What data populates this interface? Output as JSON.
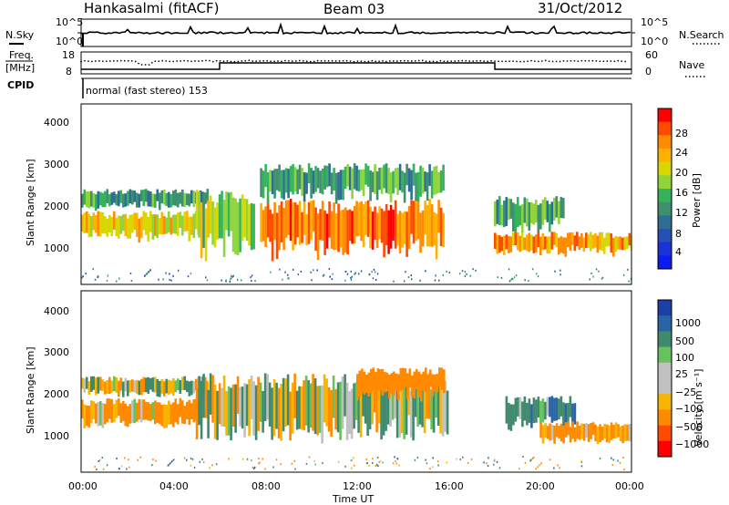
{
  "header": {
    "station": "Hankasalmi (fitACF)",
    "beam": "Beam 03",
    "date": "31/Oct/2012"
  },
  "noise_panel": {
    "left_label": "N.Sky",
    "right_label": "N.Search",
    "left_ticks": [
      "10^5",
      "10^0"
    ],
    "right_ticks": [
      "10^5",
      "10^0"
    ]
  },
  "freq_panel": {
    "left_label_1": "Freq.",
    "left_label_2": "[MHz]",
    "right_label": "Nave",
    "left_ticks": [
      "18",
      "8"
    ],
    "right_ticks": [
      "60",
      "0"
    ]
  },
  "cpid": {
    "label": "CPID",
    "text": "normal (fast stereo) 153"
  },
  "power_panel": {
    "ylabel": "Slant Range [km]",
    "yticks": [
      "4000",
      "3000",
      "2000",
      "1000"
    ],
    "colorbar_label": "Power [dB]",
    "colorbar_ticks": [
      "28",
      "24",
      "20",
      "16",
      "12",
      "8",
      "4"
    ],
    "colorbar_colors": [
      "#ff0000",
      "#ff4a00",
      "#ff8c00",
      "#ffb000",
      "#d8d800",
      "#8fd43a",
      "#35b35a",
      "#3f9070",
      "#2e6e93",
      "#2451b3",
      "#1a33d6",
      "#0c1cf0"
    ]
  },
  "velocity_panel": {
    "ylabel": "Slant Range [km]",
    "yticks": [
      "4000",
      "3000",
      "2000",
      "1000"
    ],
    "colorbar_label": "Velocity [m s⁻¹]",
    "colorbar_ticks": [
      "1000",
      "500",
      "100",
      "25",
      "−25",
      "−100",
      "−500",
      "−1000"
    ],
    "colorbar_colors": [
      "#1c3fa8",
      "#2a64a6",
      "#3f8a6c",
      "#66c25a",
      "#c0c0c0",
      "#c0c0c0",
      "#f7b500",
      "#ff8a00",
      "#ff4a00",
      "#ff0000"
    ]
  },
  "time_axis": {
    "label": "Time UT",
    "ticks": [
      "00:00",
      "04:00",
      "08:00",
      "12:00",
      "16:00",
      "20:00",
      "00:00"
    ]
  },
  "chart_data": [
    {
      "type": "heatmap",
      "title": "Beam 03",
      "xlabel": "Time UT",
      "ylabel": "Slant Range [km]",
      "xlim": [
        "00:00",
        "24:00"
      ],
      "ylim": [
        200,
        4600
      ],
      "colorbar": {
        "label": "Power [dB]",
        "range": [
          0,
          32
        ]
      },
      "description_blobs": [
        {
          "t0": 0.0,
          "t1": 5.2,
          "r0": 1300,
          "r1": 1950,
          "value": 22
        },
        {
          "t0": 0.0,
          "t1": 5.5,
          "r0": 2050,
          "r1": 2500,
          "value": 12
        },
        {
          "t0": 5.0,
          "t1": 7.5,
          "r0": 900,
          "r1": 2400,
          "value": 18
        },
        {
          "t0": 7.8,
          "t1": 15.8,
          "r0": 950,
          "r1": 2200,
          "value": 27
        },
        {
          "t0": 7.8,
          "t1": 15.8,
          "r0": 2300,
          "r1": 3100,
          "value": 13
        },
        {
          "t0": 18.0,
          "t1": 21.0,
          "r0": 1500,
          "r1": 2300,
          "value": 14
        },
        {
          "t0": 18.0,
          "t1": 24.0,
          "r0": 950,
          "r1": 1450,
          "value": 25
        }
      ]
    },
    {
      "type": "heatmap",
      "title": "Beam 03",
      "xlabel": "Time UT",
      "ylabel": "Slant Range [km]",
      "xlim": [
        "00:00",
        "24:00"
      ],
      "ylim": [
        200,
        4600
      ],
      "colorbar": {
        "label": "Velocity [m s⁻¹]",
        "range": [
          -1000,
          1000
        ]
      },
      "description_blobs": [
        {
          "t0": 0.0,
          "t1": 5.2,
          "r0": 1300,
          "r1": 1950,
          "value": -150
        },
        {
          "t0": 0.0,
          "t1": 5.5,
          "r0": 2050,
          "r1": 2500,
          "value": 0
        },
        {
          "t0": 5.0,
          "t1": 16.0,
          "r0": 1000,
          "r1": 2500,
          "value": 0
        },
        {
          "t0": 12.0,
          "t1": 15.8,
          "r0": 2000,
          "r1": 2700,
          "value": -300
        },
        {
          "t0": 18.5,
          "t1": 21.5,
          "r0": 1300,
          "r1": 2000,
          "value": 200
        },
        {
          "t0": 20.0,
          "t1": 24.0,
          "r0": 900,
          "r1": 1400,
          "value": -200
        }
      ]
    }
  ]
}
